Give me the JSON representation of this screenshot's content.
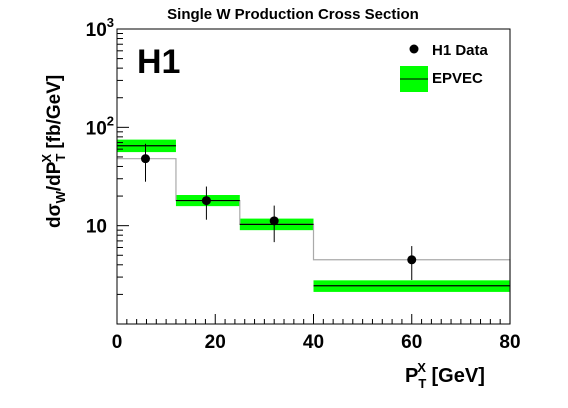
{
  "chart_data": {
    "type": "histogram-with-points",
    "title": "Single W Production Cross Section",
    "logo": "H1",
    "ylabel": "dσ_W/dP_T^X [fb/GeV]",
    "ylabel_parts": {
      "main": "dσ",
      "sub1": "W",
      "mid": "/dP",
      "sub2": "T",
      "sup2": "X",
      "tail": " [fb/GeV]"
    },
    "xlabel": "P_T^X [GeV]",
    "xlabel_parts": {
      "main": "P",
      "sub": "T",
      "sup": "X",
      "tail": " [GeV]"
    },
    "xlim": [
      0,
      80
    ],
    "ylim": [
      1,
      1000
    ],
    "yscale": "log",
    "xticks": [
      0,
      20,
      40,
      60,
      80
    ],
    "xtick_labels": [
      "0",
      "20",
      "40",
      "60",
      "80"
    ],
    "yticks": [
      {
        "value": 10,
        "base": "10",
        "exp": ""
      },
      {
        "value": 100,
        "base": "10",
        "exp": "2"
      },
      {
        "value": 1000,
        "base": "10",
        "exp": "3"
      }
    ],
    "legend": {
      "position": "top-right",
      "entries": [
        {
          "label": "H1 Data",
          "marker": "circle"
        },
        {
          "label": "EPVEC",
          "marker": "green-band-with-line"
        }
      ]
    },
    "bins": [
      {
        "xlow": 0,
        "xhigh": 12
      },
      {
        "xlow": 12,
        "xhigh": 25
      },
      {
        "xlow": 25,
        "xhigh": 40
      },
      {
        "xlow": 40,
        "xhigh": 80
      }
    ],
    "series": [
      {
        "name": "H1 Data",
        "kind": "points",
        "x": [
          5.8,
          18.2,
          32.0,
          60.0
        ],
        "y": [
          48,
          18,
          11.2,
          4.5
        ],
        "yerr_low": [
          28,
          11.5,
          6.8,
          2.8
        ],
        "yerr_high": [
          68,
          25,
          16,
          6.2
        ]
      },
      {
        "name": "EPVEC",
        "kind": "band",
        "central": [
          65,
          18,
          10.3,
          2.45
        ],
        "band_low": [
          56,
          15.8,
          9.0,
          2.12
        ],
        "band_high": [
          75,
          20.5,
          11.8,
          2.78
        ]
      },
      {
        "name": "",
        "kind": "step-line",
        "y": [
          48,
          18,
          10.3,
          4.5
        ]
      }
    ],
    "colors": {
      "band": "#00ff00",
      "band_line": "#000000",
      "data": "#000000",
      "step_line": "#aaaaaa",
      "axis": "#000000"
    }
  }
}
